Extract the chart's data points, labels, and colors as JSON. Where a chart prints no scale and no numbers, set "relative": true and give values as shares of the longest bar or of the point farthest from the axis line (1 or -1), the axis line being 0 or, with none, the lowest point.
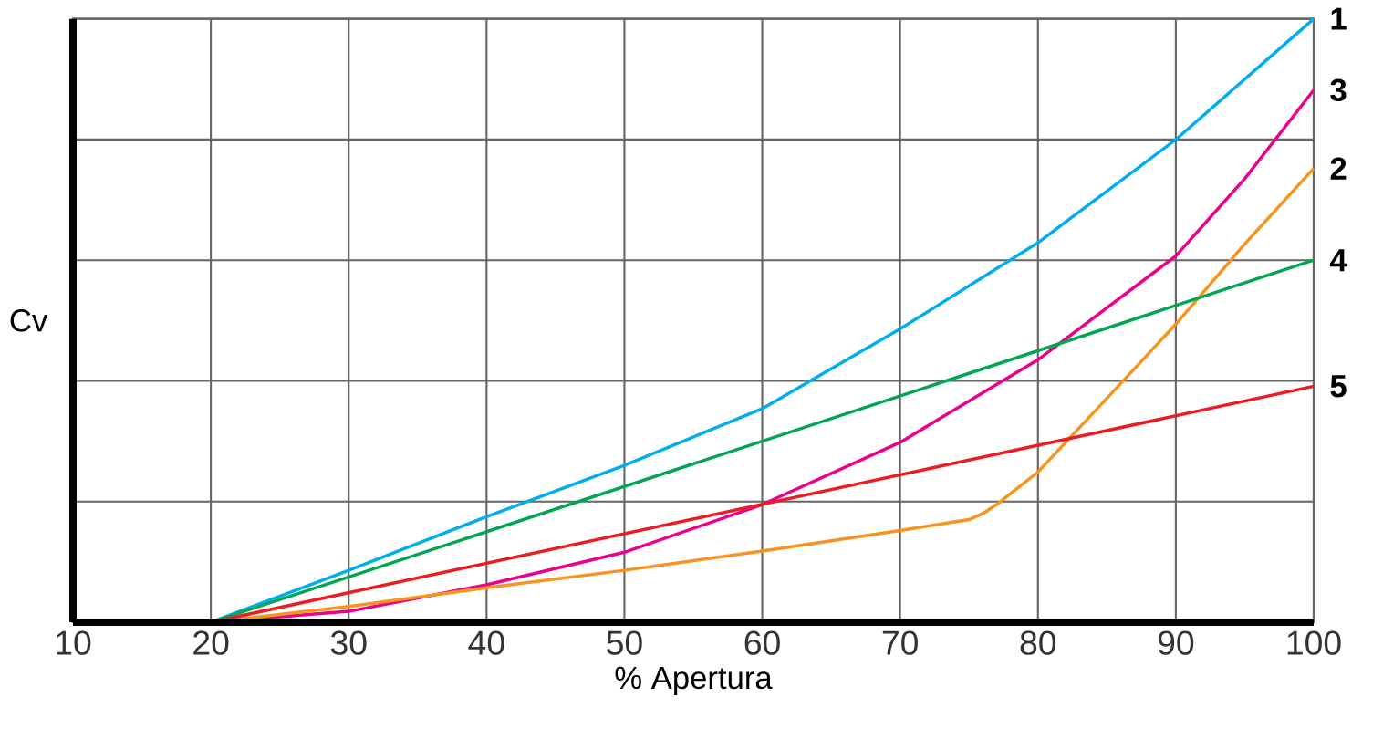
{
  "chart_data": {
    "type": "line",
    "xlabel": "% Apertura",
    "ylabel": "Cv",
    "relative": true,
    "grid": true,
    "legend": false,
    "marker": "none",
    "line_style": "solid",
    "xlim": [
      10,
      100
    ],
    "xticks": [
      10,
      20,
      30,
      40,
      50,
      60,
      70,
      80,
      90,
      100
    ],
    "series": [
      {
        "name": "1",
        "color": "#00aeef",
        "x": [
          20,
          30,
          40,
          50,
          60,
          70,
          80,
          90,
          100
        ],
        "values": [
          0,
          0.086,
          0.175,
          0.26,
          0.354,
          0.486,
          0.629,
          0.8,
          1.0
        ]
      },
      {
        "name": "3",
        "color": "#ec008c",
        "x": [
          20,
          30,
          40,
          50,
          60,
          70,
          80,
          90,
          95,
          100
        ],
        "values": [
          0,
          0.018,
          0.062,
          0.116,
          0.195,
          0.298,
          0.435,
          0.607,
          0.735,
          0.882
        ]
      },
      {
        "name": "2",
        "color": "#f7941d",
        "x": [
          20,
          30,
          40,
          50,
          60,
          70,
          75,
          76,
          77,
          80,
          85,
          90,
          95,
          100
        ],
        "values": [
          0,
          0.026,
          0.057,
          0.086,
          0.118,
          0.152,
          0.17,
          0.18,
          0.195,
          0.249,
          0.371,
          0.494,
          0.627,
          0.752
        ]
      },
      {
        "name": "4",
        "color": "#00a651",
        "x": [
          20,
          100
        ],
        "values": [
          0,
          0.6
        ]
      },
      {
        "name": "5",
        "color": "#ed1c24",
        "x": [
          20,
          100
        ],
        "values": [
          0,
          0.391
        ]
      }
    ]
  }
}
